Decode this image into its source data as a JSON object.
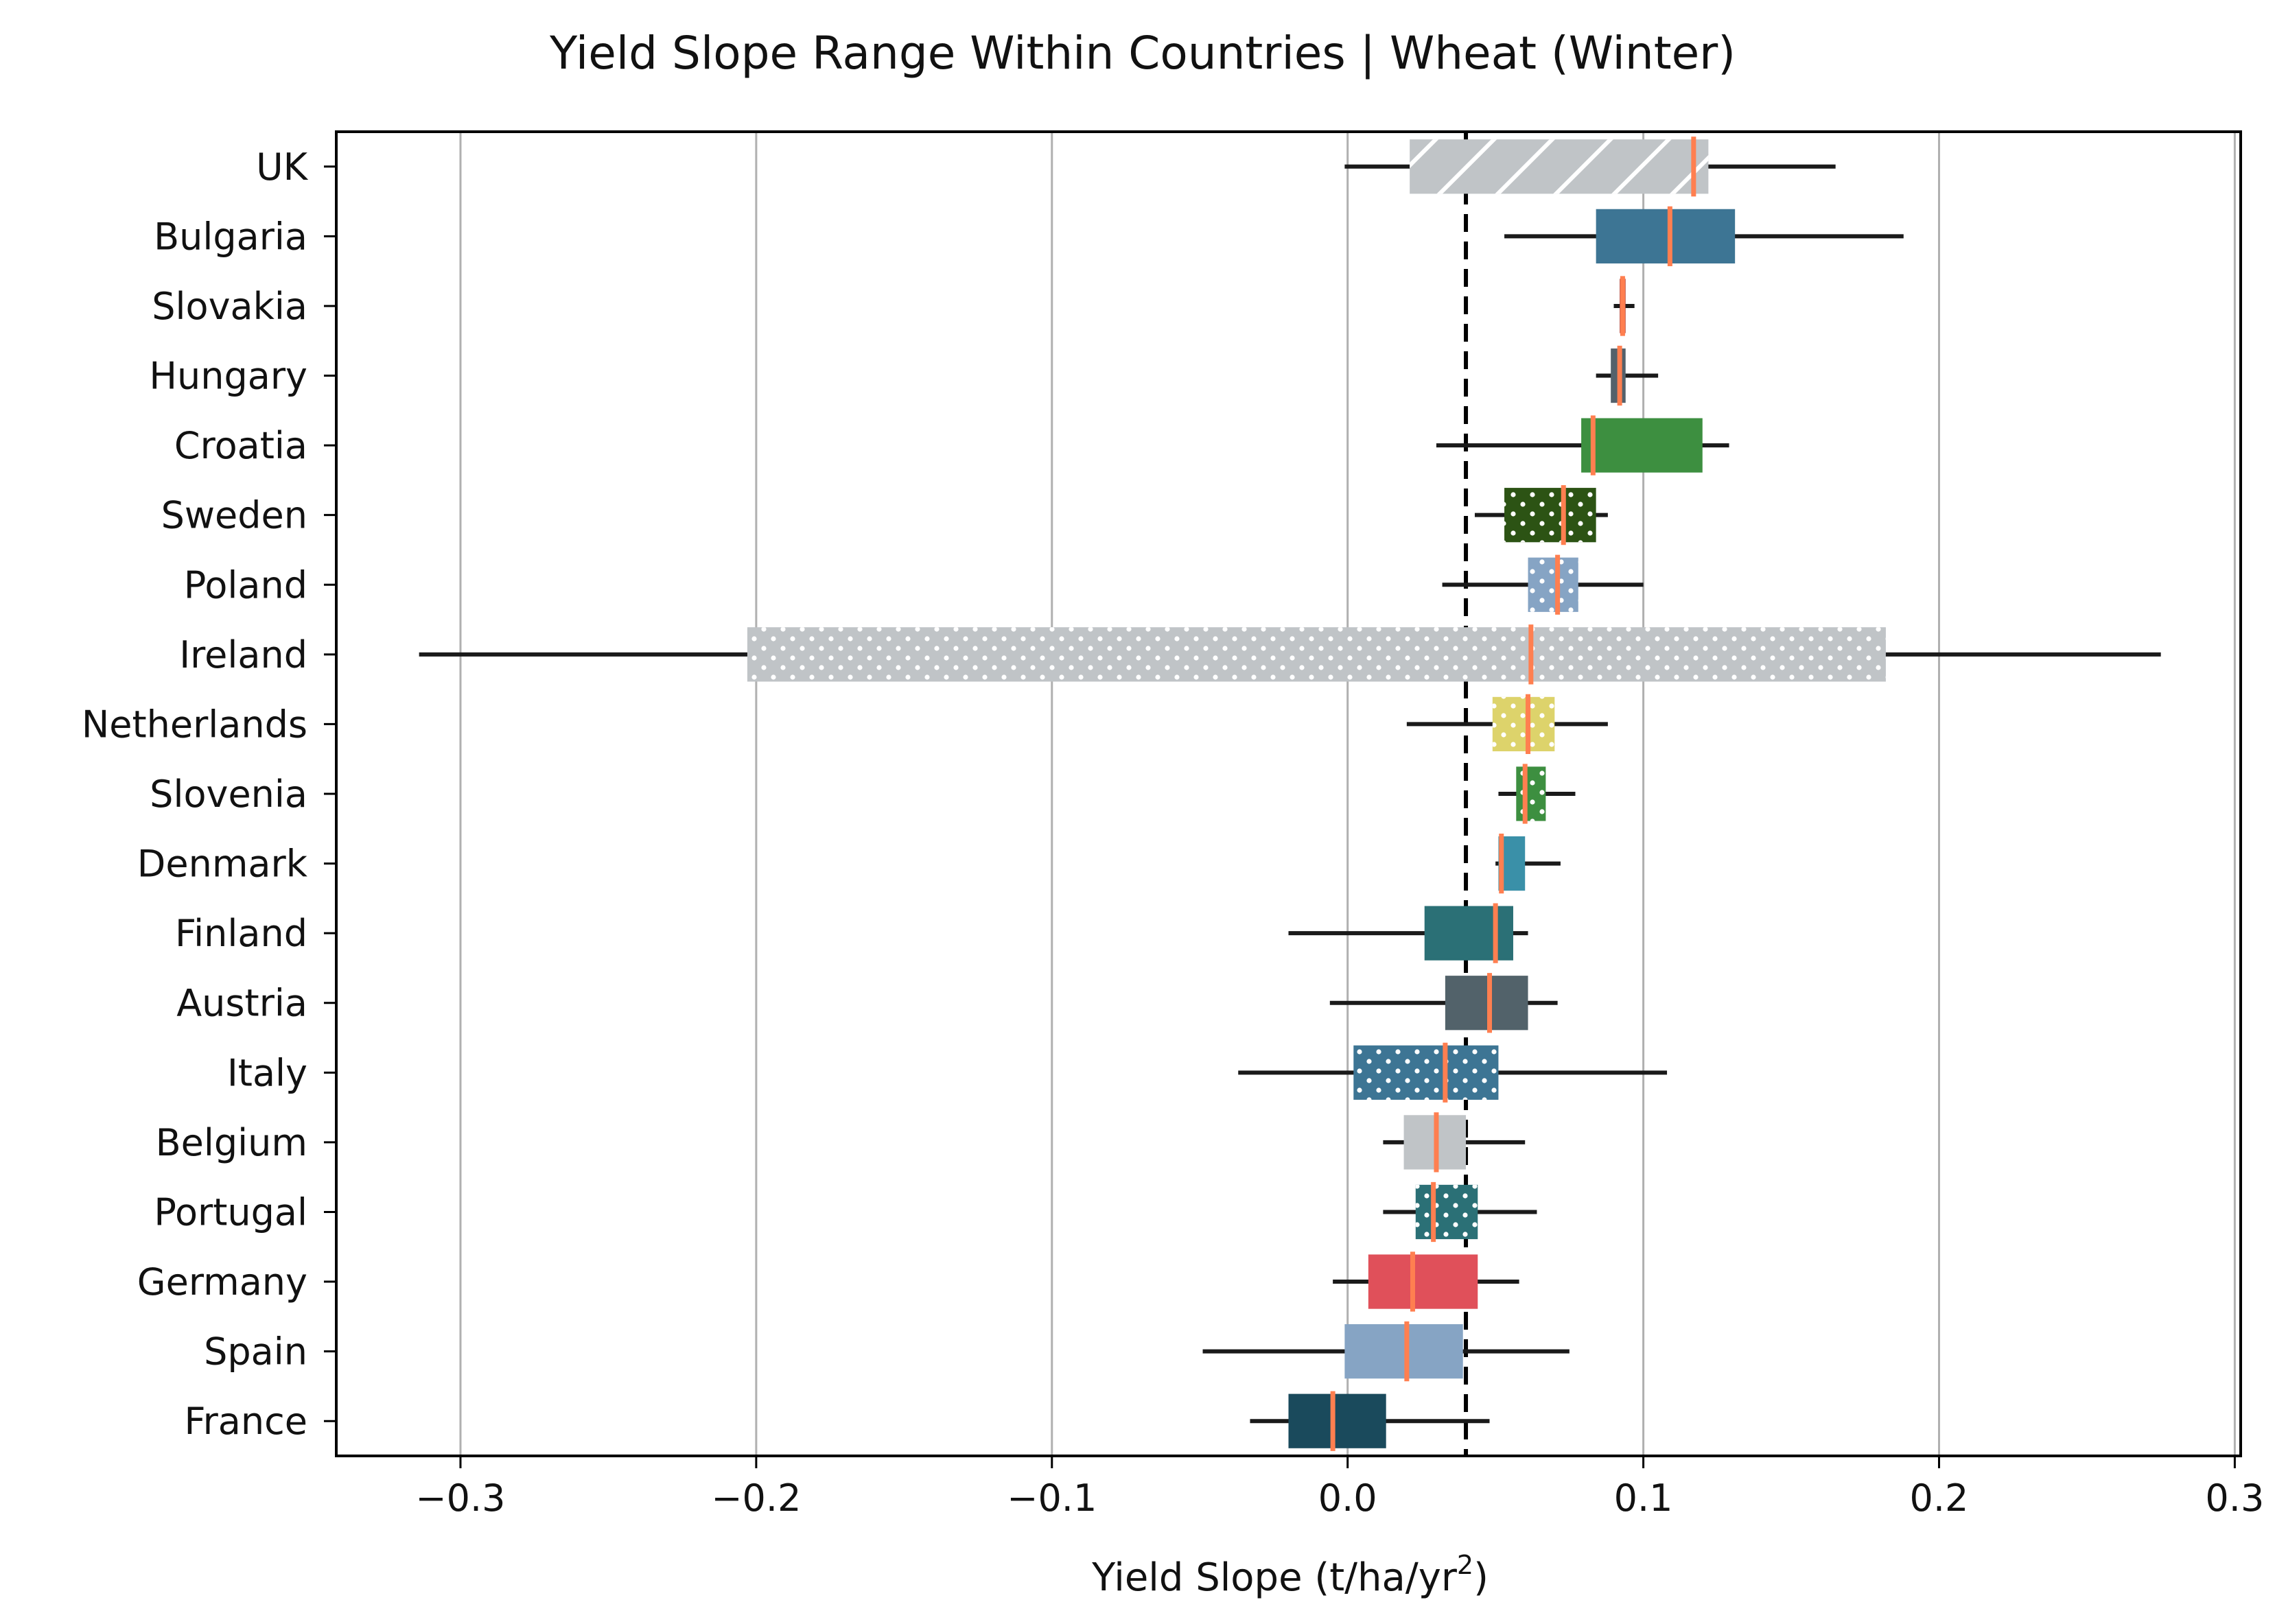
{
  "chart_data": {
    "type": "box",
    "title": "Yield Slope Range Within Countries | Wheat (Winter)",
    "xlabel_main": "Yield Slope (t/ha/yr",
    "xlabel_sup": "2",
    "xlabel_end": ")",
    "ylabel": "",
    "xlim": [
      -0.342,
      0.302
    ],
    "xticks": [
      -0.3,
      -0.2,
      -0.1,
      0.0,
      0.1,
      0.2,
      0.3
    ],
    "xtick_labels": [
      "−0.3",
      "−0.2",
      "−0.1",
      "0.0",
      "0.1",
      "0.2",
      "0.3"
    ],
    "grid": "x",
    "reference_line": 0.04,
    "series": [
      {
        "name": "UK",
        "whisker_low": -0.001,
        "q1": 0.021,
        "median": 0.117,
        "q3": 0.122,
        "whisker_high": 0.165,
        "color": "#c0c4c7",
        "pattern": "hatch"
      },
      {
        "name": "Bulgaria",
        "whisker_low": 0.053,
        "q1": 0.084,
        "median": 0.109,
        "q3": 0.131,
        "whisker_high": 0.188,
        "color": "#3d7594",
        "pattern": "none"
      },
      {
        "name": "Slovakia",
        "whisker_low": 0.09,
        "q1": 0.092,
        "median": 0.093,
        "q3": 0.094,
        "whisker_high": 0.097,
        "color": "#b5493c",
        "pattern": "none"
      },
      {
        "name": "Hungary",
        "whisker_low": 0.084,
        "q1": 0.089,
        "median": 0.092,
        "q3": 0.094,
        "whisker_high": 0.105,
        "color": "#54616b",
        "pattern": "none"
      },
      {
        "name": "Croatia",
        "whisker_low": 0.03,
        "q1": 0.079,
        "median": 0.083,
        "q3": 0.12,
        "whisker_high": 0.129,
        "color": "#3d8f40",
        "pattern": "none"
      },
      {
        "name": "Sweden",
        "whisker_low": 0.043,
        "q1": 0.053,
        "median": 0.073,
        "q3": 0.084,
        "whisker_high": 0.088,
        "color": "#2c5314",
        "pattern": "dots"
      },
      {
        "name": "Poland",
        "whisker_low": 0.032,
        "q1": 0.061,
        "median": 0.071,
        "q3": 0.078,
        "whisker_high": 0.1,
        "color": "#86a4c4",
        "pattern": "dots"
      },
      {
        "name": "Ireland",
        "whisker_low": -0.314,
        "q1": -0.203,
        "median": 0.062,
        "q3": 0.182,
        "whisker_high": 0.275,
        "color": "#c0c4c7",
        "pattern": "dots"
      },
      {
        "name": "Netherlands",
        "whisker_low": 0.02,
        "q1": 0.049,
        "median": 0.061,
        "q3": 0.07,
        "whisker_high": 0.088,
        "color": "#ddd36b",
        "pattern": "dots"
      },
      {
        "name": "Slovenia",
        "whisker_low": 0.051,
        "q1": 0.057,
        "median": 0.06,
        "q3": 0.067,
        "whisker_high": 0.077,
        "color": "#3d8f40",
        "pattern": "dots"
      },
      {
        "name": "Denmark",
        "whisker_low": 0.05,
        "q1": 0.051,
        "median": 0.052,
        "q3": 0.06,
        "whisker_high": 0.072,
        "color": "#3a90a8",
        "pattern": "none"
      },
      {
        "name": "Finland",
        "whisker_low": -0.02,
        "q1": 0.026,
        "median": 0.05,
        "q3": 0.056,
        "whisker_high": 0.061,
        "color": "#2b7076",
        "pattern": "none"
      },
      {
        "name": "Austria",
        "whisker_low": -0.006,
        "q1": 0.033,
        "median": 0.048,
        "q3": 0.061,
        "whisker_high": 0.071,
        "color": "#52626a",
        "pattern": "none"
      },
      {
        "name": "Italy",
        "whisker_low": -0.037,
        "q1": 0.002,
        "median": 0.033,
        "q3": 0.051,
        "whisker_high": 0.108,
        "color": "#3d7594",
        "pattern": "dots"
      },
      {
        "name": "Belgium",
        "whisker_low": 0.012,
        "q1": 0.019,
        "median": 0.03,
        "q3": 0.04,
        "whisker_high": 0.06,
        "color": "#c0c4c7",
        "pattern": "none"
      },
      {
        "name": "Portugal",
        "whisker_low": 0.012,
        "q1": 0.023,
        "median": 0.029,
        "q3": 0.044,
        "whisker_high": 0.064,
        "color": "#2b7076",
        "pattern": "dots"
      },
      {
        "name": "Germany",
        "whisker_low": -0.005,
        "q1": 0.007,
        "median": 0.022,
        "q3": 0.044,
        "whisker_high": 0.058,
        "color": "#e0505a",
        "pattern": "none"
      },
      {
        "name": "Spain",
        "whisker_low": -0.049,
        "q1": -0.001,
        "median": 0.02,
        "q3": 0.039,
        "whisker_high": 0.075,
        "color": "#86a4c4",
        "pattern": "none"
      },
      {
        "name": "France",
        "whisker_low": -0.033,
        "q1": -0.02,
        "median": -0.005,
        "q3": 0.013,
        "whisker_high": 0.048,
        "color": "#1a4a5c",
        "pattern": "none"
      }
    ]
  },
  "colors": {
    "whisker": "#1a1a1a",
    "median": "#ff7f50",
    "grid": "#b0b0b0",
    "reference": "#000000"
  }
}
